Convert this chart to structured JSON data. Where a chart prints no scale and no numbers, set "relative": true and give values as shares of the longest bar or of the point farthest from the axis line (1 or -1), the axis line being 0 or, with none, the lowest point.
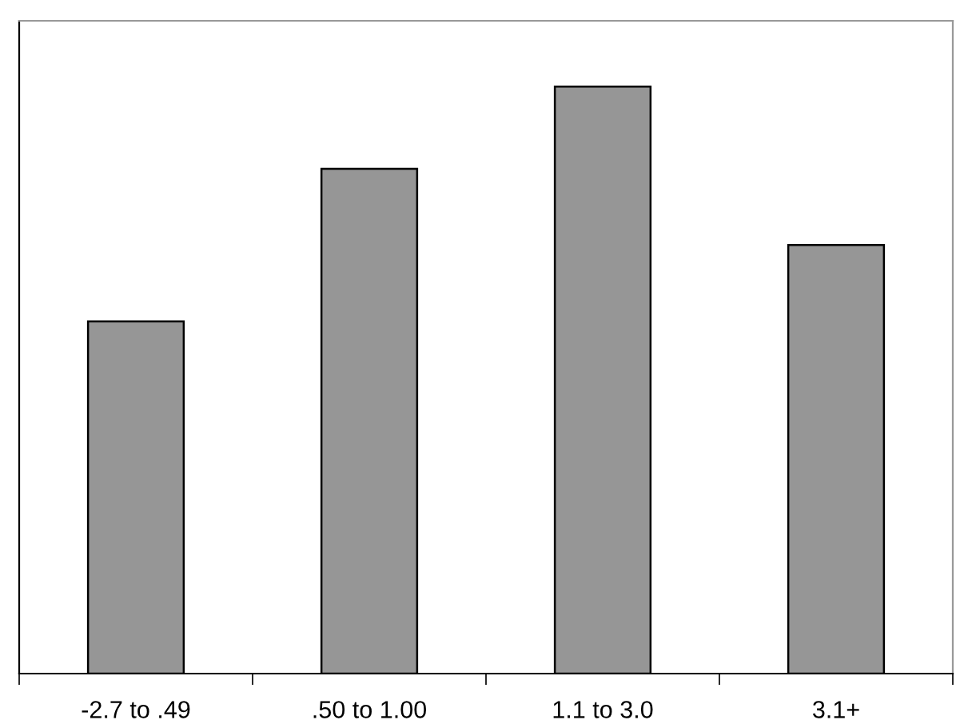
{
  "chart_data": {
    "type": "bar",
    "relative": true,
    "categories": [
      "-2.7 to .49",
      ".50 to 1.00",
      "1.1 to 3.0",
      "3.1+"
    ],
    "values": [
      0.6,
      0.86,
      1,
      0.73
    ],
    "color": "#969696",
    "grid": false,
    "legend": false
  }
}
